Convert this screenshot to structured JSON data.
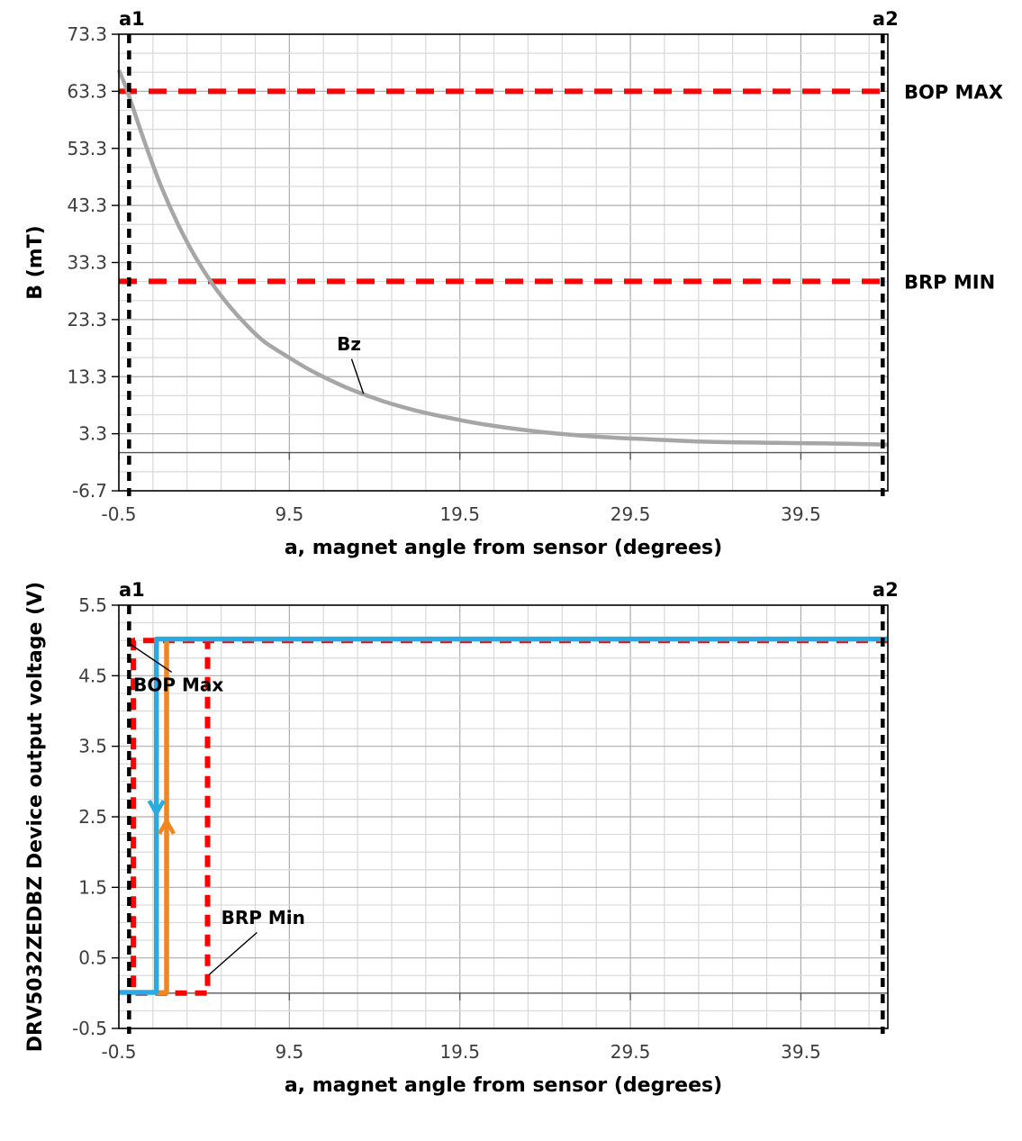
{
  "figure": {
    "name": "drv5032-magnet-angle-response",
    "background": "#FFFFFF"
  },
  "style": {
    "grid_minor": "#D9D9D9",
    "grid_major": "#ADADAD",
    "zero_line": "#595959",
    "plot_border": "#000000",
    "tick_text": "#3D3D3D",
    "label_text": "#000000",
    "threshold_red": "#FF0000",
    "curve_gray": "#A6A6A6",
    "falling_blue": "#29ABE2",
    "rising_orange": "#F0861C",
    "marker_black": "#000000"
  },
  "chart_data": [
    {
      "type": "line",
      "name": "b-field-vs-angle-chart",
      "xlabel": "a, magnet angle from sensor (degrees)",
      "ylabel": "B (mT)",
      "xlim": [
        -0.5,
        44.6
      ],
      "ylim": [
        -6.7,
        73.3
      ],
      "x_ticks": [
        -0.5,
        9.5,
        19.5,
        29.5,
        39.5
      ],
      "x_tick_labels": [
        "-0.5",
        "9.5",
        "19.5",
        "29.5",
        "39.5"
      ],
      "y_ticks": [
        73.3,
        63.3,
        53.3,
        43.3,
        33.3,
        23.3,
        13.3,
        3.3,
        -6.7
      ],
      "y_tick_labels": [
        "73.3",
        "63.3",
        "53.3",
        "43.3",
        "33.3",
        "23.3",
        "13.3",
        "3.3",
        "-6.7"
      ],
      "grid": {
        "x_minor_step": 2,
        "x_major_every": 5,
        "y_minor_step": 3.3334,
        "y_major_every": 3
      },
      "series": [
        {
          "name": "bz-curve",
          "label": "Bz",
          "color": "#A6A6A6",
          "width": 4.5,
          "smooth": true,
          "x": [
            -0.5,
            0,
            1,
            2,
            3,
            4,
            5,
            6,
            7,
            8,
            9.5,
            11,
            13,
            15,
            17,
            19,
            21,
            24,
            27,
            30,
            34,
            38,
            41,
            44.6
          ],
          "y": [
            67,
            63.3,
            54.5,
            46.5,
            39.8,
            34.2,
            29.5,
            25.6,
            22.3,
            19.5,
            16.6,
            14.0,
            11.2,
            9.0,
            7.3,
            6.0,
            4.9,
            3.7,
            2.9,
            2.4,
            1.9,
            1.7,
            1.6,
            1.4
          ]
        }
      ],
      "thresholds": [
        {
          "name": "bop-max-line",
          "label": "BOP MAX",
          "value": 63.3,
          "color": "#FF0000"
        },
        {
          "name": "brp-min-line",
          "label": "BRP MIN",
          "value": 30,
          "color": "#FF0000"
        }
      ],
      "markers": [
        {
          "name": "a1-marker",
          "label": "a1",
          "x": 0.1
        },
        {
          "name": "a2-marker",
          "label": "a2",
          "x": 44.3
        }
      ],
      "annotations": [
        {
          "name": "bz-label",
          "text": "Bz",
          "x": 13.0,
          "y": 17.9,
          "anchor": "middle",
          "leader": [
            13.15,
            16.4,
            13.85,
            10.3
          ]
        }
      ]
    },
    {
      "type": "line",
      "name": "output-voltage-vs-angle-chart",
      "xlabel": "a, magnet angle from sensor (degrees)",
      "ylabel": "DRV5032ZEDBZ Device output voltage (V)",
      "xlim": [
        -0.5,
        44.6
      ],
      "ylim": [
        -0.5,
        5.5
      ],
      "x_ticks": [
        -0.5,
        9.5,
        19.5,
        29.5,
        39.5
      ],
      "x_tick_labels": [
        "-0.5",
        "9.5",
        "19.5",
        "29.5",
        "39.5"
      ],
      "y_ticks": [
        5.5,
        4.5,
        3.5,
        2.5,
        1.5,
        0.5,
        -0.5
      ],
      "y_tick_labels": [
        "5.5",
        "4.5",
        "3.5",
        "2.5",
        "1.5",
        "0.5",
        "-0.5"
      ],
      "grid": {
        "x_minor_step": 2,
        "x_major_every": 5,
        "y_minor_step": 0.25,
        "y_major_every": 4
      },
      "series": [
        {
          "name": "worst-case-switch-window",
          "color": "#FF0000",
          "width": 6,
          "dash": "13 9",
          "x": [
            44.6,
            0.35,
            0.35,
            4.7,
            4.7
          ],
          "y": [
            5,
            5,
            0,
            0,
            5
          ]
        },
        {
          "name": "output-rising-angle",
          "color": "#F0861C",
          "width": 5.5,
          "x": [
            1.7,
            2.3,
            2.3
          ],
          "y": [
            0.005,
            0.005,
            5.0
          ]
        },
        {
          "name": "output-falling-angle",
          "color": "#29ABE2",
          "width": 5.5,
          "x": [
            -0.5,
            1.7,
            1.7,
            44.6
          ],
          "y": [
            0.01,
            0.01,
            5.02,
            5.02
          ]
        }
      ],
      "arrows": [
        {
          "name": "falling-direction-arrow",
          "color": "#29ABE2",
          "x": 1.7,
          "y": 2.55,
          "dir": "down"
        },
        {
          "name": "rising-direction-arrow",
          "color": "#F0861C",
          "x": 2.3,
          "y": 2.44,
          "dir": "up"
        }
      ],
      "markers": [
        {
          "name": "a1-marker",
          "label": "a1",
          "x": 0.1
        },
        {
          "name": "a2-marker",
          "label": "a2",
          "x": 44.3
        }
      ],
      "annotations": [
        {
          "name": "bop-max-label",
          "text": "BOP Max",
          "x": 0.35,
          "y": 4.28,
          "anchor": "start",
          "leader": [
            0.03,
            4.97,
            2.6,
            4.55
          ]
        },
        {
          "name": "brp-min-label",
          "text": "BRP Min",
          "x": 5.5,
          "y": 0.98,
          "anchor": "start",
          "leader": [
            7.6,
            0.86,
            4.78,
            0.26
          ]
        }
      ]
    }
  ]
}
